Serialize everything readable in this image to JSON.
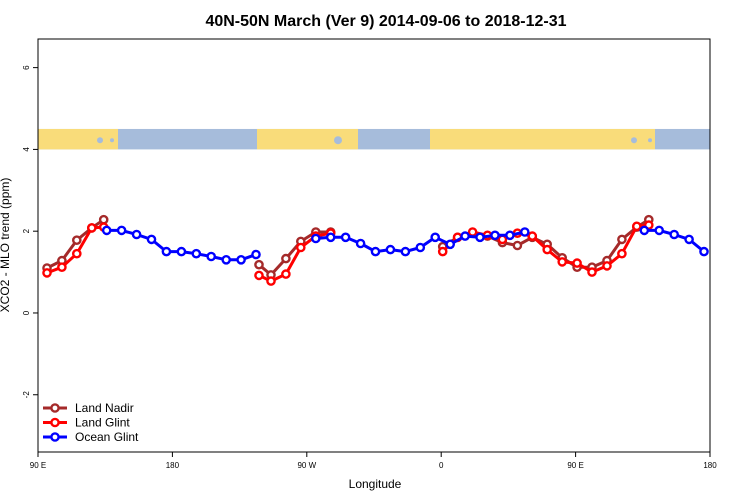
{
  "chart_data": {
    "type": "line",
    "title": "40N-50N March (Ver 9)   2014-09-06 to 2018-12-31",
    "xlabel": "Longitude",
    "ylabel": "XCO2 - MLO trend (ppm)",
    "x_unit": "degrees longitude (continuous, 90E -> 180 -> 90W -> 0 -> 90E -> 180)",
    "xlim": [
      90,
      540
    ],
    "ylim": [
      -3.4,
      6.7
    ],
    "x_ticks": [
      {
        "x": 90,
        "label": "90 E"
      },
      {
        "x": 180,
        "label": "180"
      },
      {
        "x": 270,
        "label": "90 W"
      },
      {
        "x": 360,
        "label": "0"
      },
      {
        "x": 450,
        "label": "90 E"
      },
      {
        "x": 540,
        "label": "180"
      }
    ],
    "y_ticks": [
      {
        "y": -2,
        "label": "-2"
      },
      {
        "y": 0,
        "label": "0"
      },
      {
        "y": 2,
        "label": "2"
      },
      {
        "y": 4,
        "label": "4"
      },
      {
        "y": 6,
        "label": "6"
      }
    ],
    "grid": false,
    "legend_position": "bottom-left",
    "map_strip": {
      "y_min": 4.0,
      "y_max": 4.5,
      "land_color": "#F9DC7A",
      "ocean_color": "#A6BCDB"
    },
    "series": [
      {
        "name": "Land Nadir",
        "color": "#A52A2A",
        "segments": [
          [
            [
              96,
              1.1
            ],
            [
              106,
              1.28
            ],
            [
              116,
              1.78
            ],
            [
              126,
              2.08
            ],
            [
              134,
              2.28
            ]
          ],
          [
            [
              238,
              1.18
            ],
            [
              246,
              0.93
            ],
            [
              256,
              1.33
            ],
            [
              266,
              1.75
            ],
            [
              276,
              1.98
            ],
            [
              286,
              1.98
            ]
          ],
          [
            [
              361,
              1.62
            ],
            [
              371,
              1.85
            ],
            [
              381,
              1.95
            ],
            [
              391,
              1.88
            ],
            [
              401,
              1.72
            ],
            [
              411,
              1.65
            ],
            [
              421,
              1.85
            ],
            [
              431,
              1.68
            ],
            [
              441,
              1.35
            ],
            [
              451,
              1.12
            ],
            [
              461,
              1.12
            ],
            [
              471,
              1.28
            ],
            [
              481,
              1.8
            ],
            [
              491,
              2.1
            ],
            [
              499,
              2.28
            ]
          ]
        ]
      },
      {
        "name": "Land Glint",
        "color": "#FF0000",
        "segments": [
          [
            [
              96,
              0.98
            ],
            [
              106,
              1.12
            ],
            [
              116,
              1.45
            ],
            [
              126,
              2.08
            ],
            [
              134,
              2.1
            ]
          ],
          [
            [
              238,
              0.92
            ],
            [
              246,
              0.78
            ],
            [
              256,
              0.95
            ],
            [
              266,
              1.6
            ],
            [
              276,
              1.88
            ],
            [
              286,
              1.95
            ]
          ],
          [
            [
              361,
              1.5
            ],
            [
              371,
              1.85
            ],
            [
              381,
              1.98
            ],
            [
              391,
              1.9
            ],
            [
              401,
              1.8
            ],
            [
              411,
              1.95
            ],
            [
              421,
              1.88
            ],
            [
              431,
              1.55
            ],
            [
              441,
              1.25
            ],
            [
              451,
              1.22
            ],
            [
              461,
              1.0
            ],
            [
              471,
              1.15
            ],
            [
              481,
              1.45
            ],
            [
              491,
              2.12
            ],
            [
              499,
              2.15
            ]
          ]
        ]
      },
      {
        "name": "Ocean Glint",
        "color": "#0000FF",
        "segments": [
          [
            [
              136,
              2.02
            ],
            [
              146,
              2.02
            ],
            [
              156,
              1.92
            ],
            [
              166,
              1.8
            ],
            [
              176,
              1.5
            ],
            [
              186,
              1.5
            ],
            [
              196,
              1.45
            ],
            [
              206,
              1.38
            ],
            [
              216,
              1.3
            ],
            [
              226,
              1.3
            ],
            [
              236,
              1.43
            ]
          ],
          [
            [
              276,
              1.82
            ],
            [
              286,
              1.85
            ],
            [
              296,
              1.85
            ],
            [
              306,
              1.7
            ],
            [
              316,
              1.5
            ],
            [
              326,
              1.55
            ],
            [
              336,
              1.5
            ],
            [
              346,
              1.6
            ],
            [
              356,
              1.85
            ],
            [
              366,
              1.68
            ],
            [
              376,
              1.88
            ],
            [
              386,
              1.85
            ],
            [
              396,
              1.9
            ],
            [
              406,
              1.9
            ],
            [
              416,
              1.98
            ]
          ],
          [
            [
              496,
              2.02
            ],
            [
              506,
              2.02
            ],
            [
              516,
              1.92
            ],
            [
              526,
              1.8
            ],
            [
              536,
              1.5
            ]
          ]
        ]
      }
    ]
  }
}
